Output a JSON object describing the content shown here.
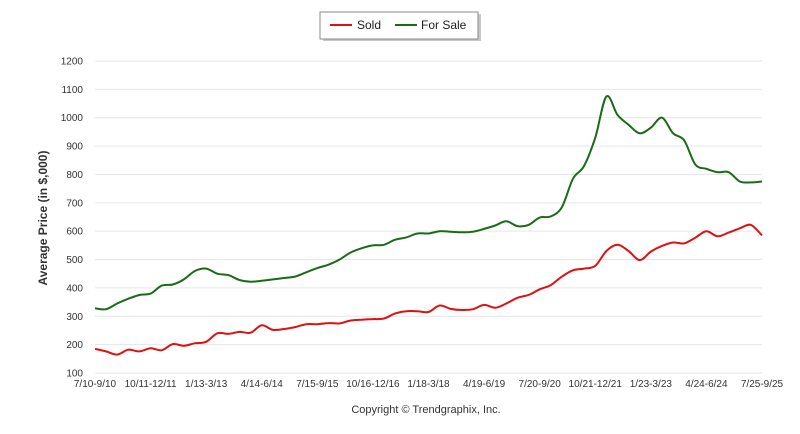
{
  "chart_data": {
    "type": "line",
    "ylabel": "Average Price (in $,000)",
    "xlabel": "",
    "ylim": [
      100,
      1200
    ],
    "yticks": [
      100,
      200,
      300,
      400,
      500,
      600,
      700,
      800,
      900,
      1000,
      1100,
      1200
    ],
    "grid": true,
    "legend_position": "top-center",
    "x_tick_labels": [
      "7/10-9/10",
      "10/11-12/11",
      "1/13-3/13",
      "4/14-6/14",
      "7/15-9/15",
      "10/16-12/16",
      "1/18-3/18",
      "4/19-6/19",
      "7/20-9/20",
      "10/21-12/21",
      "1/23-3/23",
      "4/24-6/24",
      "7/25-9/25"
    ],
    "x_tick_positions": [
      0,
      5,
      10,
      15,
      20,
      25,
      30,
      35,
      40,
      45,
      50,
      55,
      60
    ],
    "series": [
      {
        "name": "Sold",
        "color": "#e01010",
        "values": [
          185,
          176,
          165,
          182,
          176,
          187,
          180,
          202,
          196,
          205,
          210,
          240,
          238,
          245,
          242,
          268,
          252,
          255,
          262,
          272,
          272,
          276,
          275,
          285,
          288,
          290,
          292,
          310,
          318,
          318,
          315,
          338,
          326,
          322,
          325,
          340,
          330,
          345,
          365,
          375,
          395,
          410,
          440,
          462,
          468,
          478,
          530,
          552,
          530,
          498,
          528,
          548,
          560,
          557,
          577,
          600,
          582,
          595,
          610,
          622,
          585
        ]
      },
      {
        "name": "For Sale",
        "color": "#1a6b16",
        "values": [
          328,
          325,
          345,
          362,
          375,
          380,
          408,
          412,
          430,
          460,
          468,
          450,
          445,
          428,
          422,
          425,
          430,
          435,
          440,
          455,
          470,
          482,
          500,
          525,
          540,
          550,
          552,
          570,
          578,
          592,
          592,
          600,
          598,
          596,
          598,
          608,
          620,
          635,
          618,
          622,
          648,
          652,
          685,
          785,
          830,
          930,
          1075,
          1010,
          975,
          945,
          965,
          1000,
          945,
          920,
          835,
          820,
          808,
          808,
          775,
          772,
          775
        ]
      }
    ]
  },
  "copyright": "Copyright © Trendgraphix, Inc."
}
